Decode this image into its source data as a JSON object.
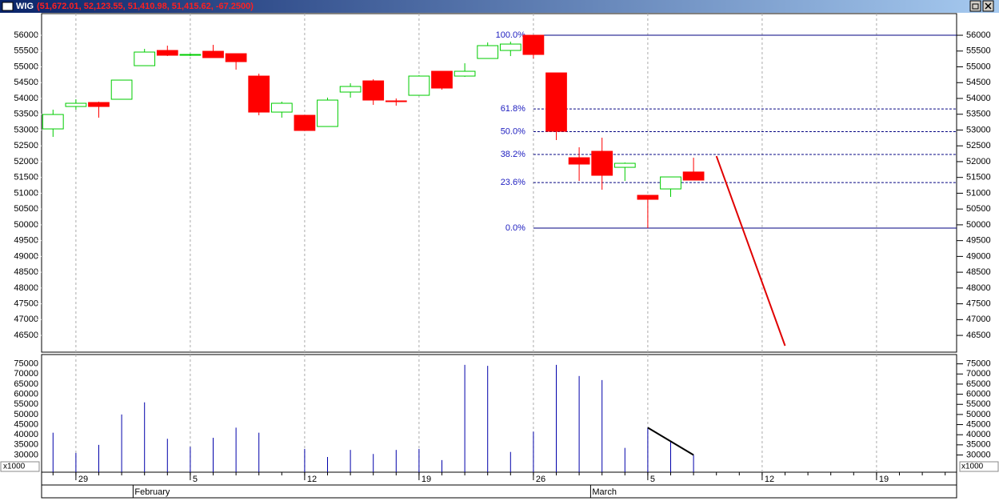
{
  "chart_data": [
    {
      "type": "candlestick",
      "title": "WIG",
      "subtitle": "(51,672.01, 52,123.55, 51,410.98, 51,415.62, -67.2500)",
      "open": [
        53036,
        53745,
        53872,
        53974,
        55037,
        55519,
        55367,
        55493,
        55417,
        54708,
        53568,
        53467,
        53112,
        54202,
        54556,
        53923,
        54100,
        54860,
        54708,
        55265,
        55519,
        56000,
        54809,
        52124,
        52327,
        51820,
        50934,
        51136,
        51672.01
      ],
      "high": [
        53644,
        53974,
        53898,
        54581,
        55569,
        55671,
        55417,
        55696,
        55417,
        54784,
        53898,
        53467,
        54024,
        54480,
        54607,
        53999,
        54733,
        54860,
        55113,
        55772,
        55797,
        56000,
        54809,
        52454,
        52757,
        51972,
        50934,
        51516,
        52123.55
      ],
      "low": [
        52783,
        53644,
        53391,
        53974,
        55037,
        55342,
        55342,
        55291,
        54911,
        53467,
        53391,
        52986,
        53112,
        54024,
        53796,
        53771,
        54100,
        54278,
        54683,
        55265,
        55341,
        55265,
        52682,
        51390,
        51111,
        51390,
        49895,
        50883,
        51410.98
      ],
      "close": [
        53492,
        53847,
        53745,
        54581,
        55468,
        55367,
        55392,
        55291,
        55164,
        53568,
        53847,
        52986,
        53948,
        54379,
        53948,
        53898,
        54708,
        54328,
        54860,
        55671,
        55721,
        55392,
        52960,
        51922,
        51567,
        51947,
        50807,
        51516,
        51415.62
      ],
      "up_color": "#00cc00",
      "down_color": "#ff0000",
      "xlim": [
        -0.5,
        39.5
      ],
      "xticks": [
        {
          "value": 1,
          "label": "29"
        },
        {
          "value": 6,
          "label": "5"
        },
        {
          "value": 11,
          "label": "12"
        },
        {
          "value": 16,
          "label": "19"
        },
        {
          "value": 21,
          "label": "26"
        },
        {
          "value": 26,
          "label": "5"
        },
        {
          "value": 31,
          "label": "12"
        },
        {
          "value": 36,
          "label": "19"
        }
      ],
      "months": [
        {
          "value": 4,
          "label": "February"
        },
        {
          "value": 24,
          "label": "March"
        }
      ],
      "ylim": [
        45970,
        56685
      ],
      "yticks": [
        46500,
        47000,
        47500,
        48000,
        48500,
        49000,
        49500,
        50000,
        50500,
        51000,
        51500,
        52000,
        52500,
        53000,
        53500,
        54000,
        54500,
        55000,
        55500,
        56000
      ],
      "grid": true,
      "fib_start": 21,
      "fib_levels": [
        {
          "label": "100.0%",
          "value": 56000,
          "style": "solid"
        },
        {
          "label": "61.8%",
          "value": 53668,
          "style": "dashed"
        },
        {
          "label": "50.0%",
          "value": 52948,
          "style": "dashed"
        },
        {
          "label": "38.2%",
          "value": 52227,
          "style": "dashed"
        },
        {
          "label": "23.6%",
          "value": 51336,
          "style": "dashed"
        },
        {
          "label": "0.0%",
          "value": 49895,
          "style": "solid"
        }
      ],
      "trend_line": {
        "x": [
          29,
          32
        ],
        "y": [
          52175,
          46172
        ],
        "color": "#e00000"
      }
    },
    {
      "type": "volume",
      "unit_label": "x1000",
      "color": "#0000aa",
      "values": [
        41000,
        31000,
        35000,
        50000,
        56000,
        38000,
        34000,
        38500,
        43500,
        41000,
        null,
        33000,
        29000,
        32500,
        30500,
        32500,
        33000,
        27500,
        74500,
        74000,
        31500,
        41500,
        74500,
        69000,
        67000,
        33500,
        43500,
        37000,
        30000
      ],
      "ylim": [
        21500,
        79600
      ],
      "yticks": [
        30000,
        35000,
        40000,
        45000,
        50000,
        55000,
        60000,
        65000,
        70000,
        75000
      ],
      "trend_line": {
        "x": [
          26,
          28
        ],
        "y": [
          43500,
          30000
        ],
        "color": "#000000"
      }
    }
  ]
}
